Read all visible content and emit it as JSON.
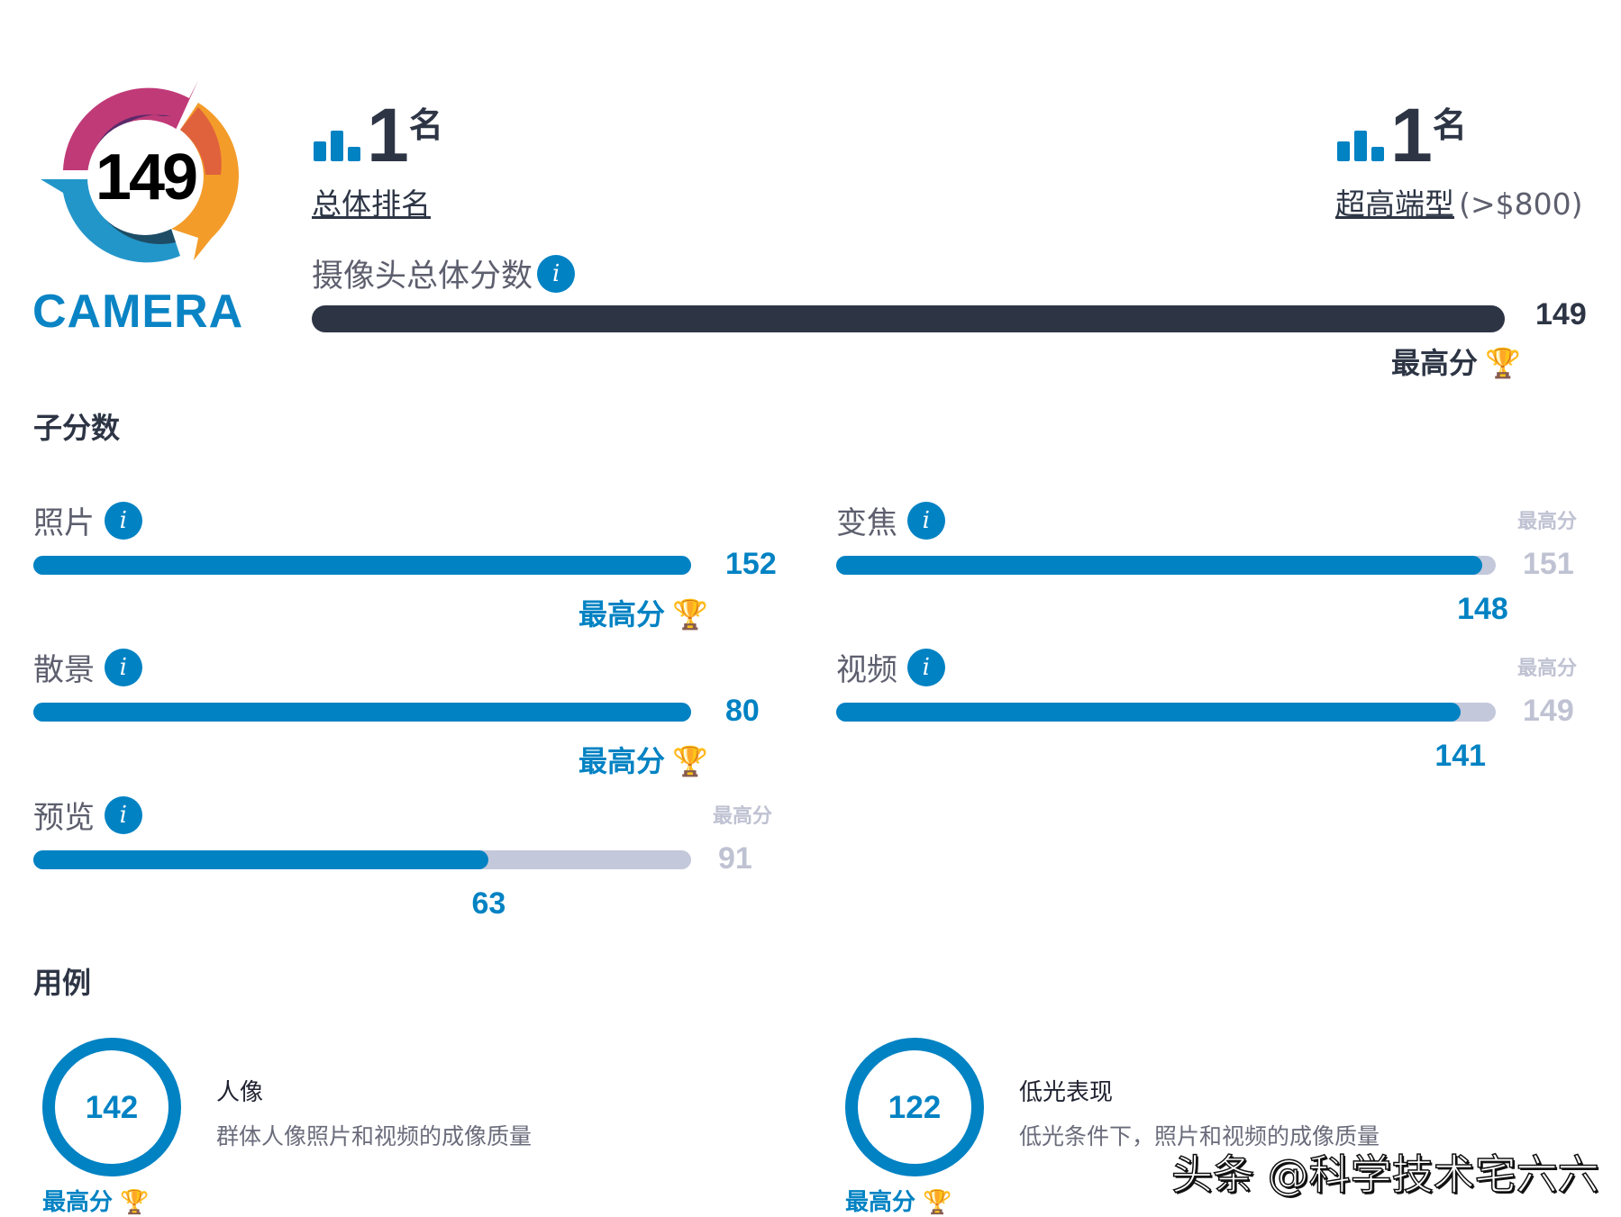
{
  "logo": {
    "score": "149",
    "text": "CAMERA"
  },
  "ranking": {
    "overall": {
      "rank": "1",
      "suffix": "名",
      "label": "总体排名"
    },
    "segment": {
      "rank": "1",
      "suffix": "名",
      "label": "超高端型",
      "extra": "(>$800)"
    }
  },
  "overall_score": {
    "label": "摄像头总体分数",
    "value": 149,
    "max": 149,
    "best_label": "最高分"
  },
  "subscores": {
    "title": "子分数",
    "best_label": "最高分",
    "items": [
      {
        "label": "照片",
        "value": 152,
        "max": 152,
        "is_best": true
      },
      {
        "label": "变焦",
        "value": 148,
        "max": 151,
        "is_best": false
      },
      {
        "label": "散景",
        "value": 80,
        "max": 80,
        "is_best": true
      },
      {
        "label": "视频",
        "value": 141,
        "max": 149,
        "is_best": false
      },
      {
        "label": "预览",
        "value": 63,
        "max": 91,
        "is_best": false
      }
    ]
  },
  "use_cases": {
    "title": "用例",
    "items": [
      {
        "score": "142",
        "name": "人像",
        "desc": "群体人像照片和视频的成像质量",
        "best_label": "最高分"
      },
      {
        "score": "122",
        "name": "低光表现",
        "desc": "低光条件下，照片和视频的成像质量",
        "best_label": "最高分"
      }
    ]
  },
  "watermark": "头条 @科学技术宅六六",
  "colors": {
    "accent": "#0082c3",
    "dark": "#2d3545",
    "track": "#c4c8db",
    "trophy": "#f5b335"
  }
}
